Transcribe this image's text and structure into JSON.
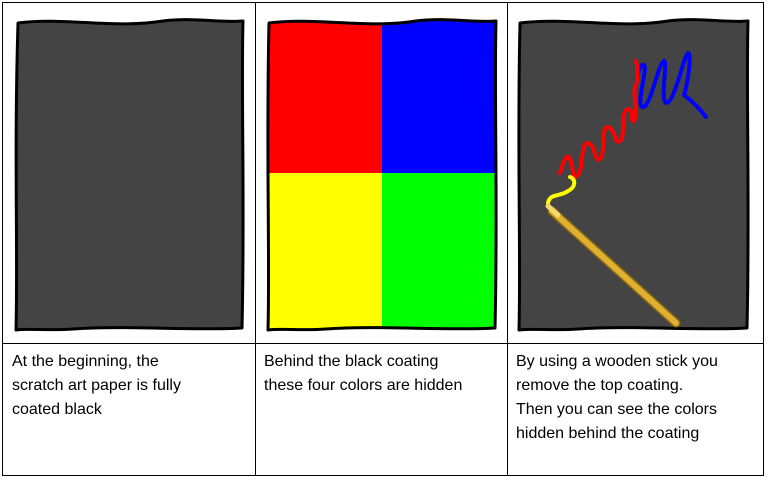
{
  "panels": [
    {
      "caption": "At the beginning, the\nscratch art paper is fully\ncoated black"
    },
    {
      "caption": "Behind the black coating\nthese four colors are hidden"
    },
    {
      "caption": "By using a wooden stick you\nremove the top coating.\nThen you can see the colors\nhidden behind the coating"
    }
  ],
  "colors": {
    "coating": "#444444",
    "red": "#ff0000",
    "blue": "#0000ff",
    "yellow": "#ffff00",
    "green": "#00ff00",
    "stick": "#e0b030",
    "outline": "#000000"
  }
}
